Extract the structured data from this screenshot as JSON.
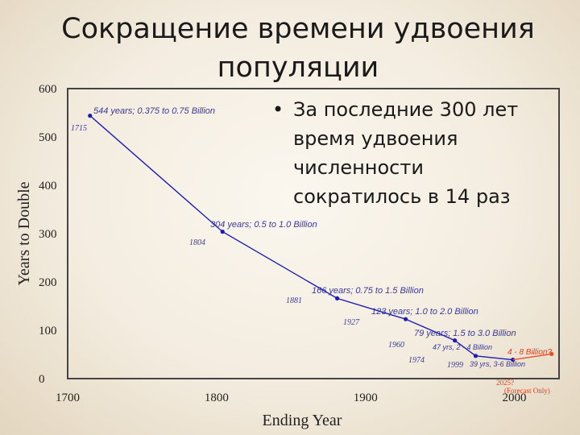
{
  "slide": {
    "title": "Сокращение времени удвоения популяции",
    "bullet": "За последние 300 лет время удвоения численности сократилось в 14 раз"
  },
  "chart_data": {
    "type": "line",
    "xlabel": "Ending Year",
    "ylabel": "Years to Double",
    "xlim": [
      1700,
      2030
    ],
    "ylim": [
      0,
      600
    ],
    "xticks": [
      1700,
      1800,
      1900,
      2000
    ],
    "yticks": [
      0,
      100,
      200,
      300,
      400,
      500,
      600
    ],
    "grid": false,
    "colors": {
      "series": "#1c1cb4",
      "forecast": "#e8502a",
      "frame": "#444444"
    },
    "series": [
      {
        "x": [
          1715,
          1804,
          1881,
          1927,
          1960,
          1974,
          1999
        ],
        "y": [
          544,
          304,
          166,
          123,
          79,
          47,
          39
        ]
      },
      {
        "x": [
          1999,
          2025
        ],
        "y": [
          39,
          51
        ]
      }
    ],
    "annotations": [
      {
        "text": "544 years; 0.375 to 0.75 Billion",
        "year_label": "1715"
      },
      {
        "text": "304 years; 0.5 to 1.0 Billion",
        "year_label": "1804"
      },
      {
        "text": "166 years; 0.75 to 1.5 Billion",
        "year_label": "1881"
      },
      {
        "text": "123 years; 1.0 to 2.0 Billion",
        "year_label": "1927"
      },
      {
        "text": "79 years; 1.5 to 3.0 Billion",
        "year_label": "1960"
      },
      {
        "text": "47 yrs, 2 - 4 Billion",
        "year_label": "1974"
      },
      {
        "text": "39 yrs, 3-6 Billion",
        "year_label": "1999"
      }
    ],
    "forecast": {
      "text": "4 - 8 Billion?",
      "year_label": "2025?",
      "note": "(Forecast Only)"
    }
  }
}
